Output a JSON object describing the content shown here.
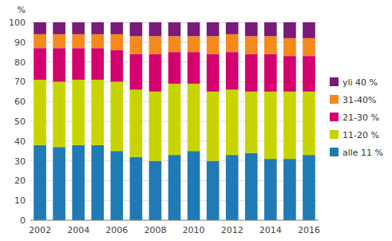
{
  "chart_data": {
    "type": "bar",
    "stacked": true,
    "ylabel": "%",
    "categories": [
      "2002",
      null,
      "2004",
      null,
      "2006",
      null,
      "2008",
      null,
      "2010",
      null,
      "2012",
      null,
      "2014",
      null,
      "2016"
    ],
    "series": [
      {
        "name": "alle 11 %",
        "color": "#1f7ab5",
        "values": [
          38,
          37,
          38,
          38,
          35,
          32,
          30,
          33,
          35,
          30,
          33,
          34,
          31,
          31,
          33
        ]
      },
      {
        "name": "11-20 %",
        "color": "#c8d400",
        "values": [
          33,
          33,
          33,
          33,
          35,
          34,
          35,
          36,
          34,
          35,
          33,
          31,
          34,
          34,
          32
        ]
      },
      {
        "name": "21-30 %",
        "color": "#d4006e",
        "values": [
          16,
          17,
          16,
          16,
          16,
          18,
          19,
          16,
          16,
          19,
          19,
          19,
          19,
          18,
          18
        ]
      },
      {
        "name": "31-40%",
        "color": "#f5891c",
        "values": [
          7,
          7,
          7,
          7,
          8,
          9,
          9,
          8,
          8,
          9,
          9,
          9,
          9,
          9,
          9
        ]
      },
      {
        "name": "yli 40 %",
        "color": "#7a1a7a",
        "values": [
          6,
          6,
          6,
          6,
          6,
          7,
          7,
          7,
          7,
          7,
          6,
          7,
          7,
          8,
          8
        ]
      }
    ],
    "ylim": [
      0,
      100
    ],
    "yticks": [
      0,
      10,
      20,
      30,
      40,
      50,
      60,
      70,
      80,
      90,
      100
    ],
    "grid": true,
    "legend": "right"
  }
}
